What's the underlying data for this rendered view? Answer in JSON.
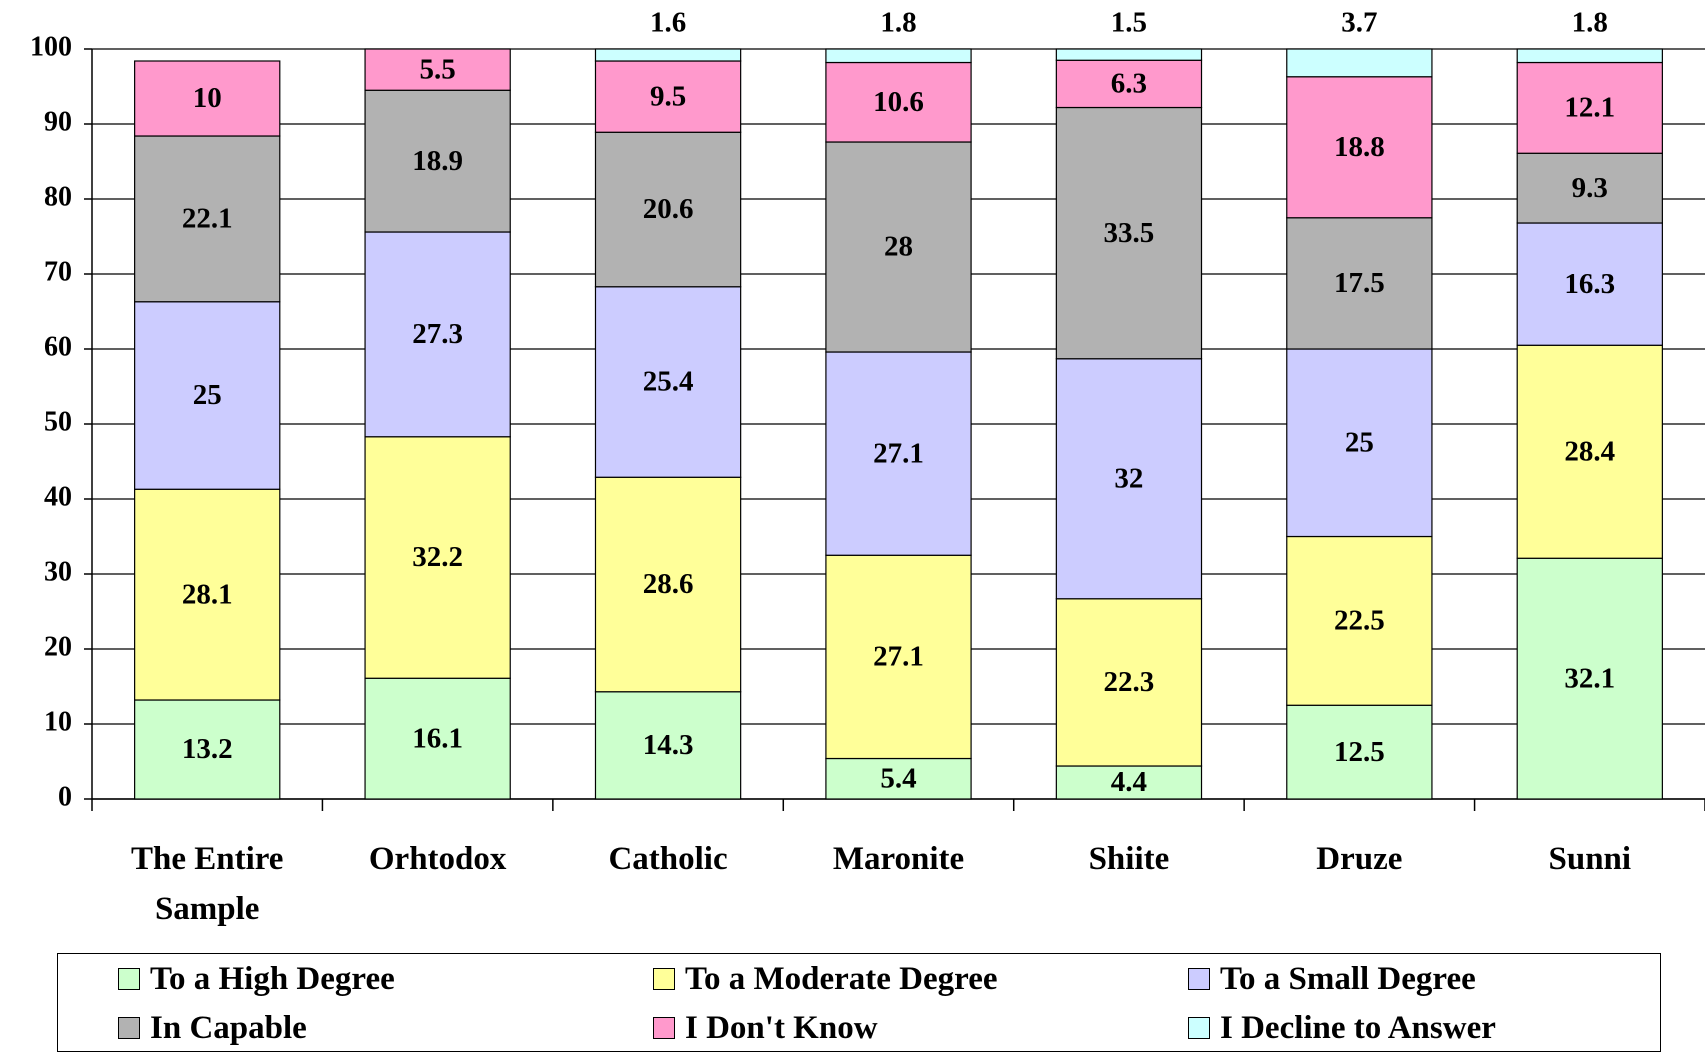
{
  "chart_data": {
    "type": "stacked_bar",
    "categories": [
      "The Entire Sample",
      "Orhtodox",
      "Catholic",
      "Maronite",
      "Shiite",
      "Druze",
      "Sunni"
    ],
    "series": [
      {
        "name": "To a High Degree",
        "color": "#ccffcc",
        "values": [
          13.2,
          16.1,
          14.3,
          5.4,
          4.4,
          12.5,
          32.1
        ]
      },
      {
        "name": "To a Moderate Degree",
        "color": "#ffff99",
        "values": [
          28.1,
          32.2,
          28.6,
          27.1,
          22.3,
          22.5,
          28.4
        ]
      },
      {
        "name": "To a Small Degree",
        "color": "#ccccff",
        "values": [
          25,
          27.3,
          25.4,
          27.1,
          32,
          25,
          16.3
        ]
      },
      {
        "name": "In Capable",
        "color": "#b2b2b2",
        "values": [
          22.1,
          18.9,
          20.6,
          28,
          33.5,
          17.5,
          9.3
        ]
      },
      {
        "name": "I Don't Know",
        "color": "#ff99cc",
        "values": [
          10,
          5.5,
          9.5,
          10.6,
          6.3,
          18.8,
          12.1
        ]
      },
      {
        "name": "I Decline to Answer",
        "color": "#ccffff",
        "values": [
          null,
          null,
          1.6,
          1.8,
          1.5,
          3.7,
          1.8
        ]
      }
    ],
    "ylim": [
      0,
      100
    ],
    "yticks": [
      0,
      10,
      20,
      30,
      40,
      50,
      60,
      70,
      80,
      90,
      100
    ],
    "grid": true,
    "legend": "bottom"
  }
}
